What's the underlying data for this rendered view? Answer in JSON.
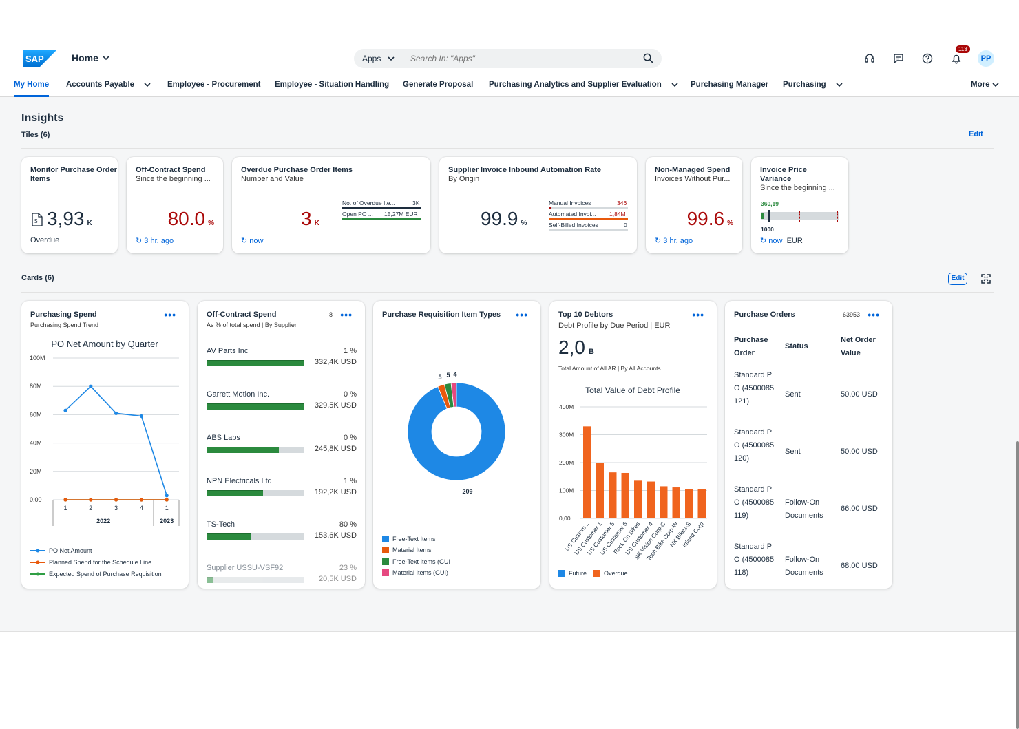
{
  "shell": {
    "home_label": "Home",
    "search_scope": "Apps",
    "search_placeholder": "Search In: \"Apps\"",
    "notification_count": "113",
    "avatar_initials": "PP"
  },
  "tabs": [
    {
      "label": "My Home"
    },
    {
      "label": "Accounts Payable"
    },
    {
      "label": "Employee - Procurement"
    },
    {
      "label": "Employee - Situation Handling"
    },
    {
      "label": "Generate Proposal"
    },
    {
      "label": "Purchasing Analytics and Supplier Evaluation"
    },
    {
      "label": "Purchasing Manager"
    },
    {
      "label": "Purchasing"
    },
    {
      "label": "More"
    }
  ],
  "insights": {
    "title": "Insights",
    "tiles_header": "Tiles (6)",
    "edit": "Edit",
    "cards_header": "Cards (6)",
    "cards_edit": "Edit"
  },
  "tiles": {
    "t1": {
      "title": "Monitor Purchase Order Items",
      "value": "3,93",
      "unit": "K",
      "footer": "Overdue"
    },
    "t2": {
      "title": "Off-Contract Spend",
      "subtitle": "Since the beginning ...",
      "value": "80.0",
      "unit": "%",
      "footer": "3 hr. ago"
    },
    "t3": {
      "title": "Overdue Purchase Order Items",
      "subtitle": "Number and Value",
      "value": "3",
      "unit": "K",
      "footer": "now",
      "row1_label": "No. of Overdue Ite...",
      "row1_value": "3K",
      "row2_label": "Open PO ...",
      "row2_value": "15,27M EUR"
    },
    "t4": {
      "title": "Supplier Invoice Inbound Automation Rate",
      "subtitle": "By Origin",
      "value": "99.9",
      "unit": "%",
      "row1_label": "Manual Invoices",
      "row1_value": "346",
      "row2_label": "Automated Invoi...",
      "row2_value": "1,84M",
      "row3_label": "Self-Billed Invoices",
      "row3_value": "0"
    },
    "t5": {
      "title": "Non-Managed Spend",
      "subtitle": "Invoices Without Pur...",
      "value": "99.6",
      "unit": "%",
      "footer": "3 hr. ago"
    },
    "t6": {
      "title": "Invoice Price Variance",
      "subtitle": "Since the beginning ...",
      "actual": "360,19",
      "target": "1000",
      "footer": "now",
      "currency": "EUR"
    }
  },
  "cards": {
    "purchasing_spend": {
      "title": "Purchasing Spend",
      "subtitle": "Purchasing Spend Trend",
      "legend": [
        "PO Net Amount",
        "Planned Spend for the Schedule Line",
        "Expected Spend of Purchase Requisition"
      ]
    },
    "off_contract": {
      "title": "Off-Contract Spend",
      "subtitle": "As % of total spend | By Supplier",
      "count": "8",
      "rows": [
        {
          "name": "AV Parts Inc",
          "pct": "1 %",
          "amount": "332,4K USD",
          "fill": 1.0
        },
        {
          "name": "Garrett Motion Inc.",
          "pct": "0 %",
          "amount": "329,5K USD",
          "fill": 0.99
        },
        {
          "name": "ABS Labs",
          "pct": "0 %",
          "amount": "245,8K USD",
          "fill": 0.74
        },
        {
          "name": "NPN Electricals Ltd",
          "pct": "1 %",
          "amount": "192,2K USD",
          "fill": 0.58
        },
        {
          "name": "TS-Tech",
          "pct": "80 %",
          "amount": "153,6K USD",
          "fill": 0.46
        },
        {
          "name": "Supplier USSU-VSF92",
          "pct": "23 %",
          "amount": "20,5K USD",
          "fill": 0.06
        }
      ]
    },
    "requisition_types": {
      "title": "Purchase Requisition Item Types",
      "legend": [
        "Free-Text Items",
        "Material Items",
        "Free-Text Items (GUI",
        "Material Items (GUI)"
      ]
    },
    "debtors": {
      "title": "Top 10 Debtors",
      "subtitle": "Debt Profile by Due Period | EUR",
      "kpi": "2,0",
      "kpi_unit": "B",
      "kpi_note": "Total Amount of All AR | By All Accounts ...",
      "legend": [
        "Future",
        "Overdue"
      ]
    },
    "purchase_orders": {
      "title": "Purchase Orders",
      "count": "63953",
      "headers": [
        "Purchase Order",
        "Status",
        "Net Order Value"
      ],
      "rows": [
        {
          "order": "Standard PO (4500085121)",
          "status": "Sent",
          "value": "50.00 USD"
        },
        {
          "order": "Standard PO (4500085120)",
          "status": "Sent",
          "value": "50.00 USD"
        },
        {
          "order": "Standard PO (4500085119)",
          "status": "Follow-On Documents",
          "value": "66.00 USD"
        },
        {
          "order": "Standard PO (4500085118)",
          "status": "Follow-On Documents",
          "value": "68.00 USD"
        }
      ]
    }
  },
  "chart_data": [
    {
      "type": "line",
      "title": "PO Net Amount by Quarter",
      "x": [
        "1",
        "2",
        "3",
        "4",
        "1"
      ],
      "x_groups": [
        {
          "label": "2022",
          "span": 4
        },
        {
          "label": "2023",
          "span": 1
        }
      ],
      "y_ticks": [
        "100M",
        "80M",
        "60M",
        "40M",
        "20M",
        "0,00"
      ],
      "ylim": [
        0,
        100000000
      ],
      "series": [
        {
          "name": "PO Net Amount",
          "color": "#1e88e5",
          "values": [
            63000000,
            80000000,
            61000000,
            59000000,
            3000000
          ]
        },
        {
          "name": "Planned Spend for the Schedule Line",
          "color": "#e8590c",
          "values": [
            0,
            0,
            0,
            0,
            0
          ]
        },
        {
          "name": "Expected Spend of Purchase Requisition",
          "color": "#2f9e44",
          "values": [
            0,
            0,
            0,
            0,
            0
          ]
        }
      ]
    },
    {
      "type": "pie",
      "series": [
        {
          "name": "Free-Text Items",
          "value": 209,
          "color": "#1e88e5"
        },
        {
          "name": "Material Items",
          "value": 5,
          "color": "#e8590c"
        },
        {
          "name": "Free-Text Items (GUI",
          "value": 5,
          "color": "#2b8a3e"
        },
        {
          "name": "Material Items (GUI)",
          "value": 4,
          "color": "#e64980"
        }
      ],
      "labels": [
        "5",
        "5",
        "4",
        "209"
      ]
    },
    {
      "type": "bar",
      "title": "Total Value of Debt Profile",
      "categories": [
        "US Custom...",
        "US Customer 1",
        "US Customer 5",
        "US Customer 6",
        "Rock On Bikes",
        "US Customer 4",
        "SK Vision Corp-C",
        "Tech Bike Corp-W",
        "NK Bikes-S",
        "Inland Corp"
      ],
      "y_ticks": [
        "400M",
        "300M",
        "200M",
        "100M",
        "0,00"
      ],
      "ylim": [
        0,
        400000000
      ],
      "series": [
        {
          "name": "Future",
          "color": "#1e88e5",
          "values": [
            0,
            0,
            0,
            0,
            0,
            0,
            0,
            0,
            0,
            0
          ]
        },
        {
          "name": "Overdue",
          "color": "#f0641e",
          "values": [
            330000000,
            198000000,
            165000000,
            163000000,
            135000000,
            132000000,
            115000000,
            111000000,
            106000000,
            105000000
          ]
        }
      ]
    }
  ]
}
